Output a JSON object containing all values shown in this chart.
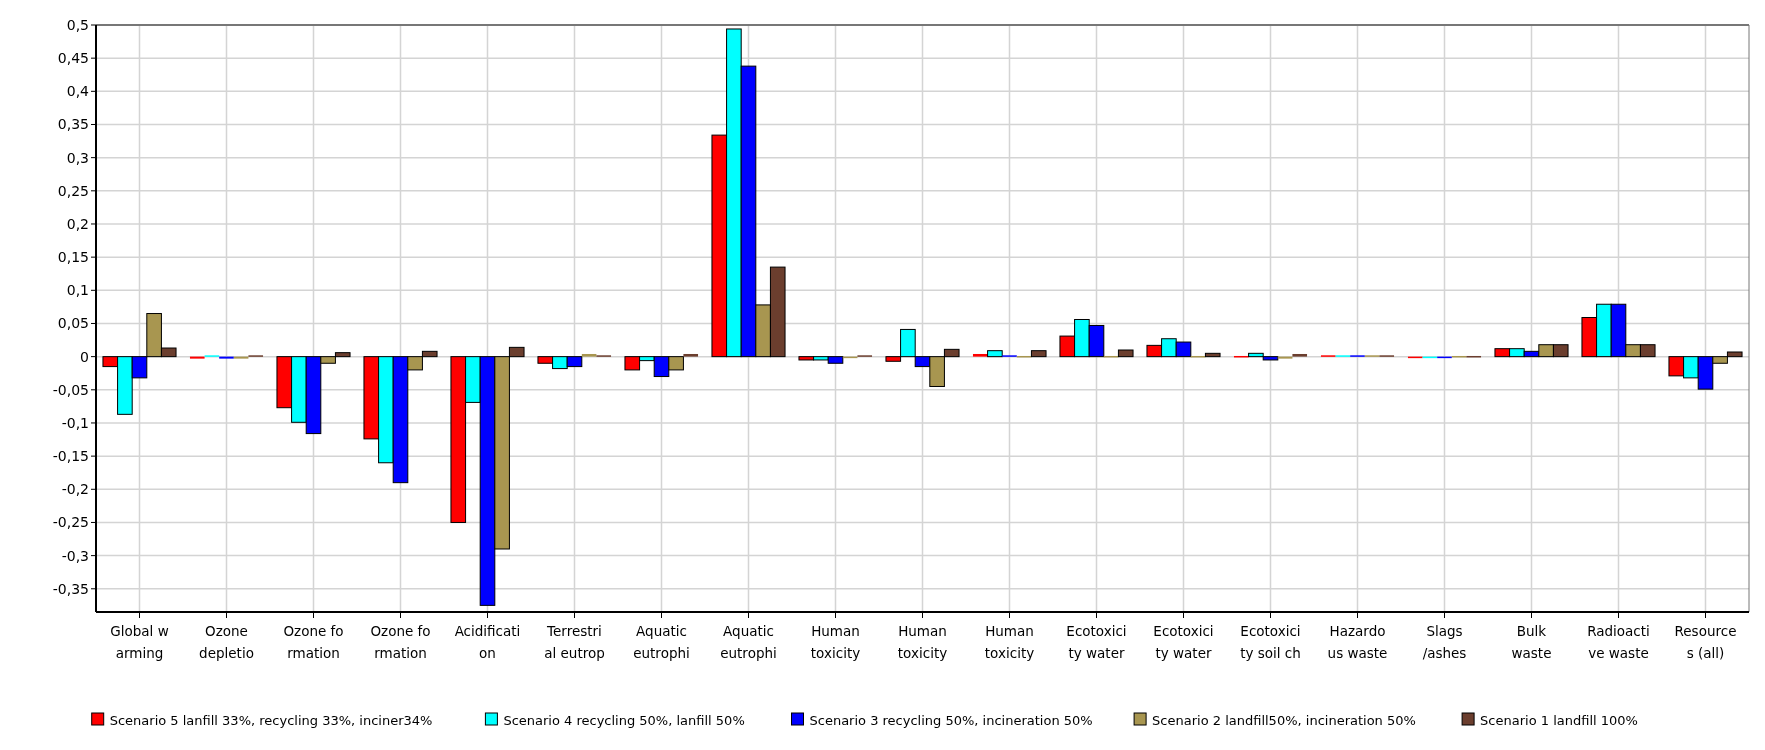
{
  "chart_data": {
    "type": "bar",
    "categories": [
      "Global w\narming",
      "Ozone\ndepletio",
      "Ozone fo\nrmation",
      "Ozone fo\nrmation",
      "Acidificati\non",
      "Terrestri\nal eutrop",
      "Aquatic\neutrophi",
      "Aquatic\neutrophi",
      "Human\ntoxicity",
      "Human\ntoxicity",
      "Human\ntoxicity",
      "Ecotoxici\nty water",
      "Ecotoxici\nty water",
      "Ecotoxici\nty soil ch",
      "Hazardo\nus waste",
      "Slags\n/ashes",
      "Bulk\nwaste",
      "Radioacti\nve waste",
      "Resource\ns (all)"
    ],
    "series": [
      {
        "name": "Scenario 5 lanfill 33%, recycling 33%, inciner34%",
        "color": "#ff0000",
        "values": [
          -0.015,
          -0.003,
          -0.077,
          -0.124,
          -0.25,
          -0.01,
          -0.02,
          0.334,
          -0.005,
          -0.007,
          0.004,
          0.031,
          0.017,
          0.001,
          0.002,
          -0.001,
          0.012,
          0.059,
          -0.029
        ]
      },
      {
        "name": "Scenario 4 recycling 50%, lanfill 50%",
        "color": "#00ffff",
        "values": [
          -0.087,
          0.002,
          -0.099,
          -0.16,
          -0.069,
          -0.018,
          -0.006,
          0.494,
          -0.005,
          0.041,
          0.009,
          0.056,
          0.027,
          0.005,
          0.002,
          -0.001,
          0.012,
          0.079,
          -0.032
        ]
      },
      {
        "name": "Scenario 3 recycling 50%, incineration 50%",
        "color": "#0000ff",
        "values": [
          -0.032,
          -0.003,
          -0.116,
          -0.19,
          -0.375,
          -0.015,
          -0.03,
          0.438,
          -0.01,
          -0.015,
          0.002,
          0.047,
          0.022,
          -0.005,
          0.002,
          -0.001,
          0.008,
          0.079,
          -0.049
        ]
      },
      {
        "name": "Scenario 2 landfill50%, incineration 50%",
        "color": "#a89650",
        "values": [
          0.065,
          -0.003,
          -0.01,
          -0.02,
          -0.29,
          0.004,
          -0.02,
          0.078,
          0.0,
          -0.045,
          0.001,
          0.001,
          0.001,
          -0.003,
          0.002,
          0.001,
          0.018,
          0.018,
          -0.01
        ]
      },
      {
        "name": "Scenario 1 landfill 100%",
        "color": "#6b3e2e",
        "values": [
          0.013,
          0.002,
          0.006,
          0.008,
          0.014,
          0.002,
          0.004,
          0.135,
          0.002,
          0.011,
          0.009,
          0.01,
          0.005,
          0.004,
          0.002,
          0.001,
          0.018,
          0.018,
          0.007
        ]
      }
    ],
    "ylim": [
      -0.385,
      0.5
    ],
    "yticks": [
      {
        "value": -0.35,
        "label": "-0,35"
      },
      {
        "value": -0.3,
        "label": "-0,3"
      },
      {
        "value": -0.25,
        "label": "-0,25"
      },
      {
        "value": -0.2,
        "label": "-0,2"
      },
      {
        "value": -0.15,
        "label": "-0,15"
      },
      {
        "value": -0.1,
        "label": "-0,1"
      },
      {
        "value": -0.05,
        "label": "-0,05"
      },
      0,
      {
        "value": 0.05,
        "label": "0,05"
      },
      {
        "value": 0.1,
        "label": "0,1"
      },
      {
        "value": 0.15,
        "label": "0,15"
      },
      {
        "value": 0.2,
        "label": "0,2"
      },
      {
        "value": 0.25,
        "label": "0,25"
      },
      {
        "value": 0.3,
        "label": "0,3"
      },
      {
        "value": 0.35,
        "label": "0,35"
      },
      {
        "value": 0.4,
        "label": "0,4"
      },
      {
        "value": 0.45,
        "label": "0,45"
      },
      {
        "value": 0.5,
        "label": "0,5"
      }
    ],
    "grid": true,
    "legend": "bottom"
  }
}
